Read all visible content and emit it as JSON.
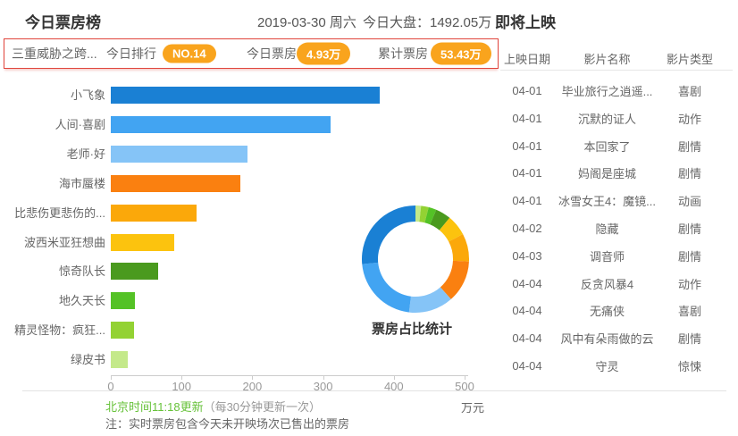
{
  "theme": {
    "accent_red": "#e0443c",
    "badge_orange": "#f9a41d",
    "update_green": "#67c23a",
    "text_dark": "#333333",
    "text_gray": "#666666",
    "axis_gray": "#999999"
  },
  "header": {
    "title": "今日票房榜",
    "date": "2019-03-30 周六",
    "market": "今日大盘：1492.05万",
    "coming_soon_title": "即将上映"
  },
  "highlight": {
    "movie": "三重威胁之跨...",
    "rank_label": "今日排行",
    "rank_value": "NO.14",
    "today_label": "今日票房",
    "today_value": "4.93万",
    "total_label": "累计票房",
    "total_value": "53.43万"
  },
  "chart_data": [
    {
      "type": "bar",
      "orientation": "horizontal",
      "title": "今日票房榜",
      "categories": [
        "小飞象",
        "人间·喜剧",
        "老师·好",
        "海市蜃楼",
        "比悲伤更悲伤的...",
        "波西米亚狂想曲",
        "惊奇队长",
        "地久天长",
        "精灵怪物：疯狂...",
        "绿皮书"
      ],
      "values": [
        380,
        310,
        193,
        183,
        121,
        90,
        67,
        34,
        33,
        24
      ],
      "colors": [
        "#1a80d4",
        "#42a4f2",
        "#85c4f7",
        "#fa8010",
        "#fba80a",
        "#fcc30e",
        "#4a9a1e",
        "#54c226",
        "#93d233",
        "#c4e98a"
      ],
      "unit": "万元",
      "xlim": [
        0,
        500
      ],
      "xticks": [
        0,
        100,
        200,
        300,
        400,
        500
      ],
      "grid": false
    },
    {
      "type": "pie",
      "subtype": "donut",
      "title": "票房占比统计",
      "labels": [
        "绿皮书",
        "精灵怪物：疯狂...",
        "地久天长",
        "惊奇队长",
        "波西米亚狂想曲",
        "比悲伤更悲伤的...",
        "海市蜃楼",
        "老师·好",
        "人间·喜剧",
        "小飞象"
      ],
      "values": [
        24,
        33,
        34,
        67,
        90,
        121,
        183,
        193,
        310,
        380
      ],
      "colors": [
        "#c4e98a",
        "#93d233",
        "#54c226",
        "#4a9a1e",
        "#fcc30e",
        "#fba80a",
        "#fa8010",
        "#85c4f7",
        "#42a4f2",
        "#1a80d4"
      ],
      "start_angle": "top",
      "direction": "clockwise",
      "legend": false
    }
  ],
  "coming_soon": {
    "columns": [
      "上映日期",
      "影片名称",
      "影片类型"
    ],
    "rows": [
      {
        "date": "04-01",
        "name": "毕业旅行之逍遥...",
        "genre": "喜剧"
      },
      {
        "date": "04-01",
        "name": "沉默的证人",
        "genre": "动作"
      },
      {
        "date": "04-01",
        "name": "本回家了",
        "genre": "剧情"
      },
      {
        "date": "04-01",
        "name": "妈阁是座城",
        "genre": "剧情"
      },
      {
        "date": "04-01",
        "name": "冰雪女王4：魔镜...",
        "genre": "动画"
      },
      {
        "date": "04-02",
        "name": "隐藏",
        "genre": "剧情"
      },
      {
        "date": "04-03",
        "name": "调音师",
        "genre": "剧情"
      },
      {
        "date": "04-04",
        "name": "反贪风暴4",
        "genre": "动作"
      },
      {
        "date": "04-04",
        "name": "无痛侠",
        "genre": "喜剧"
      },
      {
        "date": "04-04",
        "name": "风中有朵雨做的云",
        "genre": "剧情"
      },
      {
        "date": "04-04",
        "name": "守灵",
        "genre": "惊悚"
      }
    ]
  },
  "footer": {
    "update_time": "北京时间11:18更新",
    "update_freq": "（每30分钟更新一次）",
    "note": "注：实时票房包含今天未开映场次已售出的票房"
  }
}
